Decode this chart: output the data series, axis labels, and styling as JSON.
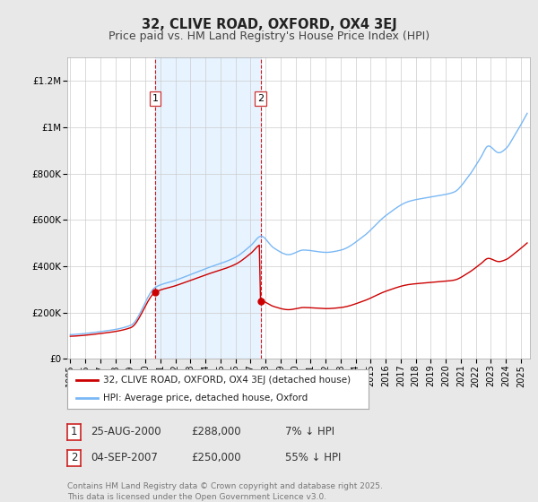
{
  "title": "32, CLIVE ROAD, OXFORD, OX4 3EJ",
  "subtitle": "Price paid vs. HM Land Registry's House Price Index (HPI)",
  "title_fontsize": 10.5,
  "subtitle_fontsize": 9,
  "ylabel_ticks": [
    "£0",
    "£200K",
    "£400K",
    "£600K",
    "£800K",
    "£1M",
    "£1.2M"
  ],
  "ytick_values": [
    0,
    200000,
    400000,
    600000,
    800000,
    1000000,
    1200000
  ],
  "ylim": [
    0,
    1300000
  ],
  "xlim_start": 1994.8,
  "xlim_end": 2025.6,
  "sale1_x": 2000.646,
  "sale1_y": 288000,
  "sale2_x": 2007.676,
  "sale2_y": 250000,
  "hpi_color": "#7ab8f5",
  "property_color": "#cc0000",
  "vline_color": "#cc0000",
  "vline_style": "--",
  "shade_color": "#ddeeff",
  "background_color": "#e8e8e8",
  "plot_bg_color": "#ffffff",
  "grid_color": "#cccccc",
  "legend_label_property": "32, CLIVE ROAD, OXFORD, OX4 3EJ (detached house)",
  "legend_label_hpi": "HPI: Average price, detached house, Oxford",
  "sale_labels": [
    {
      "num": "1",
      "date": "25-AUG-2000",
      "price": "£288,000",
      "pct": "7% ↓ HPI"
    },
    {
      "num": "2",
      "date": "04-SEP-2007",
      "price": "£250,000",
      "pct": "55% ↓ HPI"
    }
  ],
  "footer": "Contains HM Land Registry data © Crown copyright and database right 2025.\nThis data is licensed under the Open Government Licence v3.0.",
  "x_tick_years": [
    1995,
    1996,
    1997,
    1998,
    1999,
    2000,
    2001,
    2002,
    2003,
    2004,
    2005,
    2006,
    2007,
    2008,
    2009,
    2010,
    2011,
    2012,
    2013,
    2014,
    2015,
    2016,
    2017,
    2018,
    2019,
    2020,
    2021,
    2022,
    2023,
    2024,
    2025
  ]
}
